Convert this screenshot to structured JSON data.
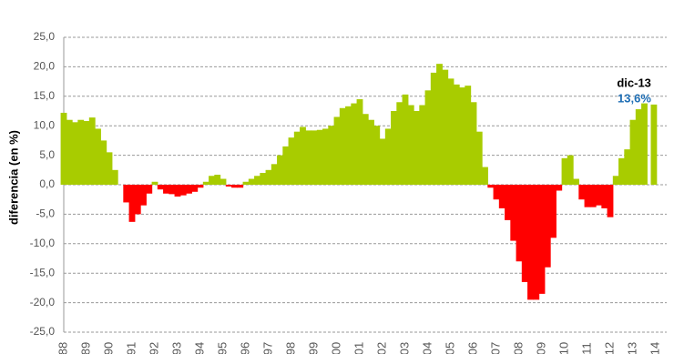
{
  "chart_data": {
    "type": "bar",
    "y_label": "diferencia (en %)",
    "pos_color": "#a8cc00",
    "neg_color": "#ff0000",
    "grid": true,
    "xlim": [
      1988,
      2014
    ],
    "ylim": [
      -25,
      25
    ],
    "yticks": [
      {
        "value": 25,
        "label": "25,0"
      },
      {
        "value": 20,
        "label": "20,0"
      },
      {
        "value": 15,
        "label": "15,0"
      },
      {
        "value": 10,
        "label": "10,0"
      },
      {
        "value": 5,
        "label": "5,0"
      },
      {
        "value": 0,
        "label": "0,0"
      },
      {
        "value": -5,
        "label": "-5,0"
      },
      {
        "value": -10,
        "label": "-10,0"
      },
      {
        "value": -15,
        "label": "-15,0"
      },
      {
        "value": -20,
        "label": "-20,0"
      },
      {
        "value": -25,
        "label": "-25,0"
      }
    ],
    "xticks": [
      {
        "value": 1988,
        "label": "88"
      },
      {
        "value": 1989,
        "label": "89"
      },
      {
        "value": 1990,
        "label": "90"
      },
      {
        "value": 1991,
        "label": "91"
      },
      {
        "value": 1992,
        "label": "92"
      },
      {
        "value": 1993,
        "label": "93"
      },
      {
        "value": 1994,
        "label": "94"
      },
      {
        "value": 1995,
        "label": "95"
      },
      {
        "value": 1996,
        "label": "96"
      },
      {
        "value": 1997,
        "label": "97"
      },
      {
        "value": 1998,
        "label": "98"
      },
      {
        "value": 1999,
        "label": "99"
      },
      {
        "value": 2000,
        "label": "00"
      },
      {
        "value": 2001,
        "label": "01"
      },
      {
        "value": 2002,
        "label": "02"
      },
      {
        "value": 2003,
        "label": "03"
      },
      {
        "value": 2004,
        "label": "04"
      },
      {
        "value": 2005,
        "label": "05"
      },
      {
        "value": 2006,
        "label": "06"
      },
      {
        "value": 2007,
        "label": "07"
      },
      {
        "value": 2008,
        "label": "08"
      },
      {
        "value": 2009,
        "label": "09"
      },
      {
        "value": 2010,
        "label": "10"
      },
      {
        "value": 2011,
        "label": "11"
      },
      {
        "value": 2012,
        "label": "12"
      },
      {
        "value": 2013,
        "label": "13"
      },
      {
        "value": 2014,
        "label": "14"
      }
    ],
    "x": [
      1988,
      1988.25,
      1988.5,
      1988.75,
      1989,
      1989.25,
      1989.5,
      1989.75,
      1990,
      1990.25,
      1990.5,
      1990.75,
      1991,
      1991.25,
      1991.5,
      1991.75,
      1992,
      1992.25,
      1992.5,
      1992.75,
      1993,
      1993.25,
      1993.5,
      1993.75,
      1994,
      1994.25,
      1994.5,
      1994.75,
      1995,
      1995.25,
      1995.5,
      1995.75,
      1996,
      1996.25,
      1996.5,
      1996.75,
      1997,
      1997.25,
      1997.5,
      1997.75,
      1998,
      1998.25,
      1998.5,
      1998.75,
      1999,
      1999.25,
      1999.5,
      1999.75,
      2000,
      2000.25,
      2000.5,
      2000.75,
      2001,
      2001.25,
      2001.5,
      2001.75,
      2002,
      2002.25,
      2002.5,
      2002.75,
      2003,
      2003.25,
      2003.5,
      2003.75,
      2004,
      2004.25,
      2004.5,
      2004.75,
      2005,
      2005.25,
      2005.5,
      2005.75,
      2006,
      2006.25,
      2006.5,
      2006.75,
      2007,
      2007.25,
      2007.5,
      2007.75,
      2008,
      2008.25,
      2008.5,
      2008.75,
      2009,
      2009.25,
      2009.5,
      2009.75,
      2010,
      2010.25,
      2010.5,
      2010.75,
      2011,
      2011.25,
      2011.5,
      2011.75,
      2012,
      2012.25,
      2012.5,
      2012.75,
      2013,
      2013.25,
      2013.5,
      2013.917
    ],
    "values": [
      12.2,
      11.0,
      10.6,
      11.0,
      10.8,
      11.4,
      9.5,
      7.5,
      5.5,
      2.5,
      0.0,
      -3.0,
      -6.3,
      -5.0,
      -3.5,
      -1.5,
      0.5,
      -0.8,
      -1.5,
      -1.6,
      -2.0,
      -1.8,
      -1.5,
      -1.2,
      -0.5,
      0.5,
      1.5,
      1.7,
      1.0,
      -0.3,
      -0.5,
      -0.5,
      0.5,
      1.0,
      1.5,
      2.0,
      2.5,
      3.5,
      5.0,
      6.5,
      8.0,
      9.0,
      9.8,
      9.2,
      9.2,
      9.3,
      9.5,
      10.0,
      11.5,
      13.0,
      13.3,
      13.8,
      14.5,
      12.0,
      11.0,
      10.0,
      7.8,
      9.5,
      12.5,
      14.0,
      15.3,
      13.5,
      12.5,
      13.5,
      16.0,
      19.0,
      20.5,
      19.5,
      18.0,
      17.0,
      16.5,
      16.8,
      14.0,
      9.0,
      3.0,
      -0.5,
      -2.5,
      -4.0,
      -6.0,
      -9.5,
      -13.0,
      -16.5,
      -19.5,
      -19.5,
      -18.5,
      -14.0,
      -9.0,
      -1.0,
      4.5,
      5.0,
      1.0,
      -2.5,
      -3.8,
      -3.8,
      -3.5,
      -4.0,
      -5.5,
      1.5,
      4.5,
      6.0,
      11.0,
      12.8,
      13.8,
      13.6
    ],
    "annotations": [
      {
        "text": "dic-13",
        "color": "#000000"
      },
      {
        "text": "13,6%",
        "color": "#1f6fb5"
      }
    ]
  }
}
